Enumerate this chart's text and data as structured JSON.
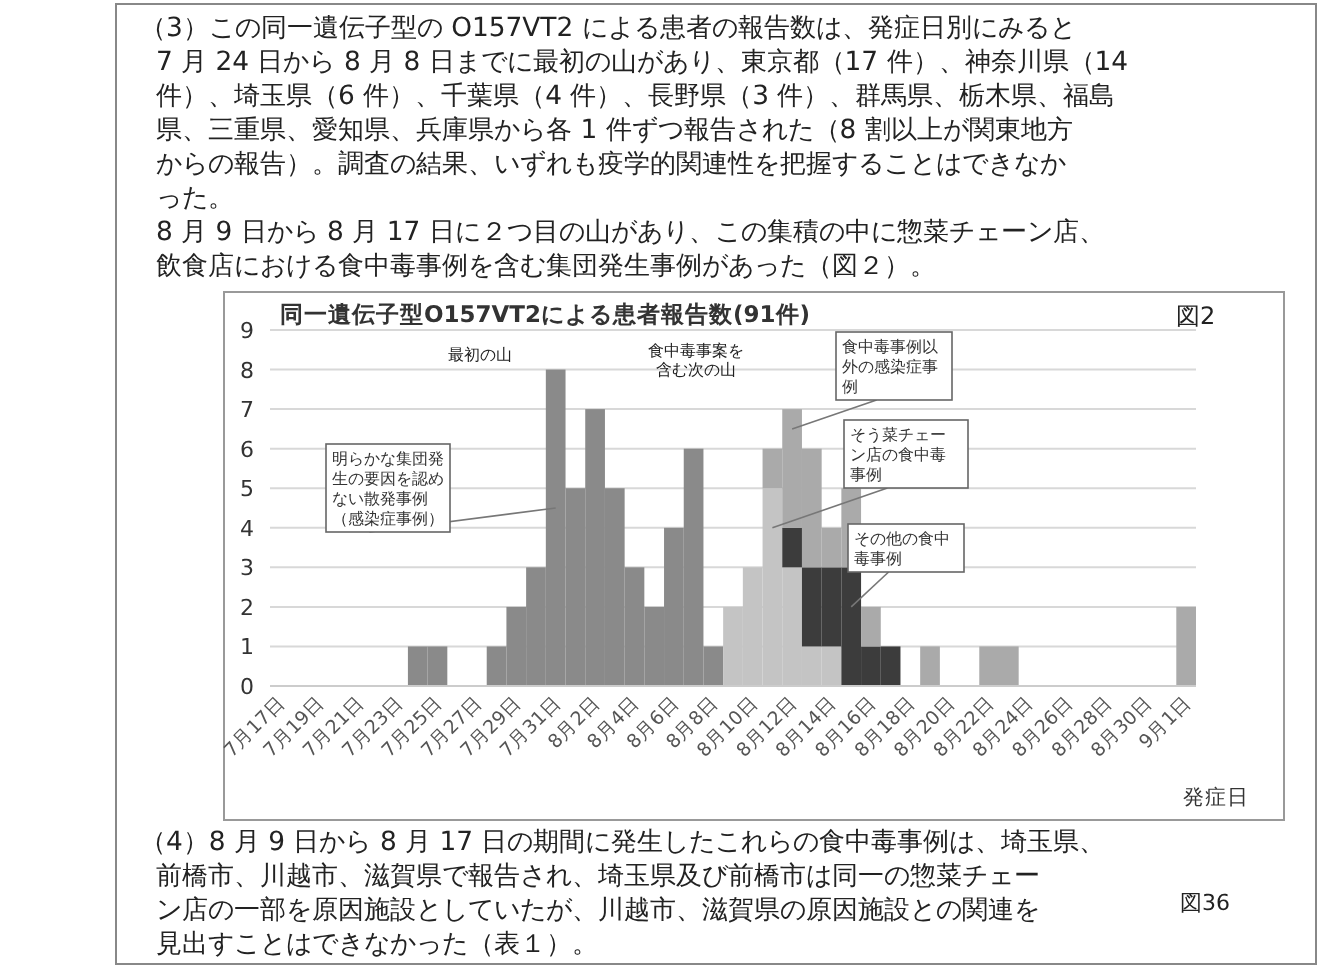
{
  "chart_data": {
    "type": "bar",
    "stacked": true,
    "title": "同一遺伝子型O157VT2による患者報告数(91件)",
    "xlabel": "発症日",
    "categories": [
      "7月17日",
      null,
      "7月19日",
      null,
      "7月21日",
      null,
      "7月23日",
      null,
      "7月25日",
      null,
      "7月27日",
      null,
      "7月29日",
      null,
      "7月31日",
      null,
      "8月2日",
      null,
      "8月4日",
      null,
      "8月6日",
      null,
      "8月8日",
      null,
      "8月10日",
      null,
      "8月12日",
      null,
      "8月14日",
      null,
      "8月16日",
      null,
      "8月18日",
      null,
      "8月20日",
      null,
      "8月22日",
      null,
      "8月24日",
      null,
      "8月26日",
      null,
      "8月28日",
      null,
      "8月30日",
      null,
      "9月1日"
    ],
    "series": [
      {
        "name": "明らかな集団発生の要因を認めない散発事例（感染症事例）",
        "color": "#8a8a8a",
        "values": [
          null,
          null,
          null,
          null,
          null,
          null,
          null,
          1,
          1,
          null,
          null,
          1,
          2,
          3,
          8,
          5,
          7,
          5,
          3,
          2,
          4,
          6,
          1,
          null,
          null,
          null,
          null,
          null,
          null,
          null,
          null,
          null,
          null,
          null,
          null,
          null,
          null,
          null,
          null,
          null,
          null,
          null,
          null,
          null,
          null,
          null,
          null
        ]
      },
      {
        "name": "そう菜チェーン店の食中毒事例",
        "color": "#c4c4c4",
        "values": [
          null,
          null,
          null,
          null,
          null,
          null,
          null,
          null,
          null,
          null,
          null,
          null,
          null,
          null,
          null,
          null,
          null,
          null,
          null,
          null,
          null,
          null,
          null,
          2,
          3,
          5,
          3,
          1,
          1,
          null,
          null,
          null,
          null,
          null,
          null,
          null,
          null,
          null,
          null,
          null,
          null,
          null,
          null,
          null,
          null,
          null,
          null
        ]
      },
      {
        "name": "その他の食中毒事例",
        "color": "#3c3c3c",
        "values": [
          null,
          null,
          null,
          null,
          null,
          null,
          null,
          null,
          null,
          null,
          null,
          null,
          null,
          null,
          null,
          null,
          null,
          null,
          null,
          null,
          null,
          null,
          null,
          null,
          null,
          null,
          1,
          2,
          2,
          3,
          1,
          1,
          null,
          null,
          null,
          null,
          null,
          null,
          null,
          null,
          null,
          null,
          null,
          null,
          null,
          null,
          null
        ]
      },
      {
        "name": "食中毒事例以外の感染症事例",
        "color": "#aaaaaa",
        "values": [
          null,
          null,
          null,
          null,
          null,
          null,
          null,
          null,
          null,
          null,
          null,
          null,
          null,
          null,
          null,
          null,
          null,
          null,
          null,
          null,
          null,
          null,
          null,
          null,
          null,
          1,
          3,
          3,
          1,
          2,
          1,
          null,
          null,
          1,
          null,
          null,
          1,
          1,
          null,
          null,
          null,
          null,
          null,
          null,
          null,
          null,
          2
        ]
      }
    ],
    "ylim": [
      0,
      9
    ],
    "yticks": [
      0,
      1,
      2,
      3,
      4,
      5,
      6,
      7,
      8,
      9
    ],
    "grid": "y",
    "annotations": [
      "（3）この同一遺伝子型の O157VT2 による患者の報告数は、発症日別にみると",
      "7 月 24 日から 8 月 8 日までに最初の山があり、東京都（17 件）、神奈川県（14",
      "件）、埼玉県（6 件）、千葉県（4 件）、長野県（3 件）、群馬県、栃木県、福島",
      "県、三重県、愛知県、兵庫県から各 1 件ずつ報告された（8 割以上が関東地方",
      "からの報告）。調査の結果、いずれも疫学的関連性を把握することはできなか",
      "った。",
      "8 月 9 日から 8 月 17 日に２つ目の山があり、この集積の中に惣菜チェーン店、",
      "飲食店における食中毒事例を含む集団発生事例があった（図２）。",
      "図2",
      "最初の山",
      "食中毒事案を含む次の山",
      "（4）8 月 9 日から 8 月 17 日の期間に発生したこれらの食中毒事例は、埼玉県、",
      "前橋市、川越市、滋賀県で報告され、埼玉県及び前橋市は同一の惣菜チェー",
      "ン店の一部を原因施設としていたが、川越市、滋賀県の原因施設との関連を",
      "見出すことはできなかった（表１）。",
      "図36"
    ]
  }
}
